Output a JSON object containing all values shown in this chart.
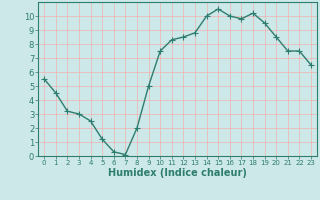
{
  "x": [
    0,
    1,
    2,
    3,
    4,
    5,
    6,
    7,
    8,
    9,
    10,
    11,
    12,
    13,
    14,
    15,
    16,
    17,
    18,
    19,
    20,
    21,
    22,
    23
  ],
  "y": [
    5.5,
    4.5,
    3.2,
    3.0,
    2.5,
    1.2,
    0.3,
    0.1,
    2.0,
    5.0,
    7.5,
    8.3,
    8.5,
    8.8,
    10.0,
    10.5,
    10.0,
    9.8,
    10.2,
    9.5,
    8.5,
    7.5,
    7.5,
    6.5
  ],
  "line_color": "#2e7d6e",
  "marker": "+",
  "markersize": 4,
  "linewidth": 1.0,
  "xlabel": "Humidex (Indice chaleur)",
  "xlabel_fontsize": 7,
  "bg_color": "#cce8e8",
  "grid_color": "#f0b0b0",
  "axis_color": "#2e7d6e",
  "tick_color": "#2e7d6e",
  "xlim": [
    -0.5,
    23.5
  ],
  "ylim": [
    0,
    11
  ],
  "xtick_fontsize": 5,
  "ytick_fontsize": 6
}
